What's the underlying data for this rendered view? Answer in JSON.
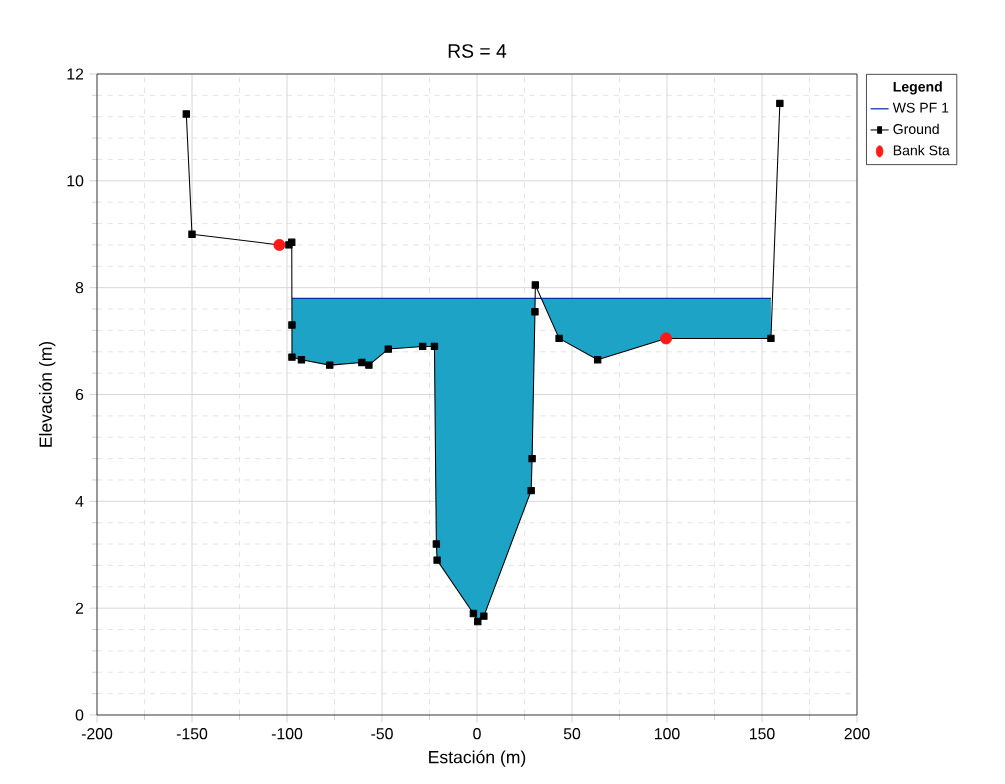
{
  "chart_data": {
    "type": "line",
    "title": "RS = 4",
    "xlabel": "Estación (m)",
    "ylabel": "Elevación (m)",
    "legend_title": "Legend",
    "xlim": [
      -200,
      200
    ],
    "ylim": [
      0,
      12
    ],
    "xticks": [
      -200,
      -150,
      -100,
      -50,
      0,
      50,
      100,
      150,
      200
    ],
    "yticks": [
      0,
      2,
      4,
      6,
      8,
      10,
      12
    ],
    "grid": true,
    "legend": "top right",
    "series": [
      {
        "name": "WS PF 1",
        "type": "area",
        "color": "#1ca3c6",
        "marker": "none",
        "x": [
          -97.4,
          154.7
        ],
        "values": [
          7.8,
          7.8
        ]
      },
      {
        "name": "Ground",
        "color": "#000000",
        "marker": "square",
        "x": [
          -153,
          -150,
          -104,
          -99,
          -97.5,
          -97.4,
          -97.4,
          -92.4,
          -77.5,
          -60.6,
          -56.9,
          -46.7,
          -28.6,
          -22.4,
          -21.4,
          -21,
          -1.9,
          0.4,
          3.6,
          28.5,
          29,
          30.5,
          30.7,
          43.2,
          63.5,
          99.5,
          154.7,
          159.4
        ],
        "values": [
          11.25,
          9.0,
          8.8,
          8.8,
          8.85,
          7.3,
          6.7,
          6.65,
          6.55,
          6.6,
          6.55,
          6.85,
          6.9,
          6.9,
          3.2,
          2.9,
          1.9,
          1.75,
          1.85,
          4.2,
          4.8,
          7.55,
          8.05,
          7.05,
          6.65,
          7.05,
          7.05,
          11.45
        ]
      },
      {
        "name": "Bank Sta",
        "type": "scatter",
        "color": "#ff1a1a",
        "marker": "circle",
        "x": [
          -104,
          99.5
        ],
        "values": [
          8.8,
          7.05
        ]
      }
    ]
  }
}
